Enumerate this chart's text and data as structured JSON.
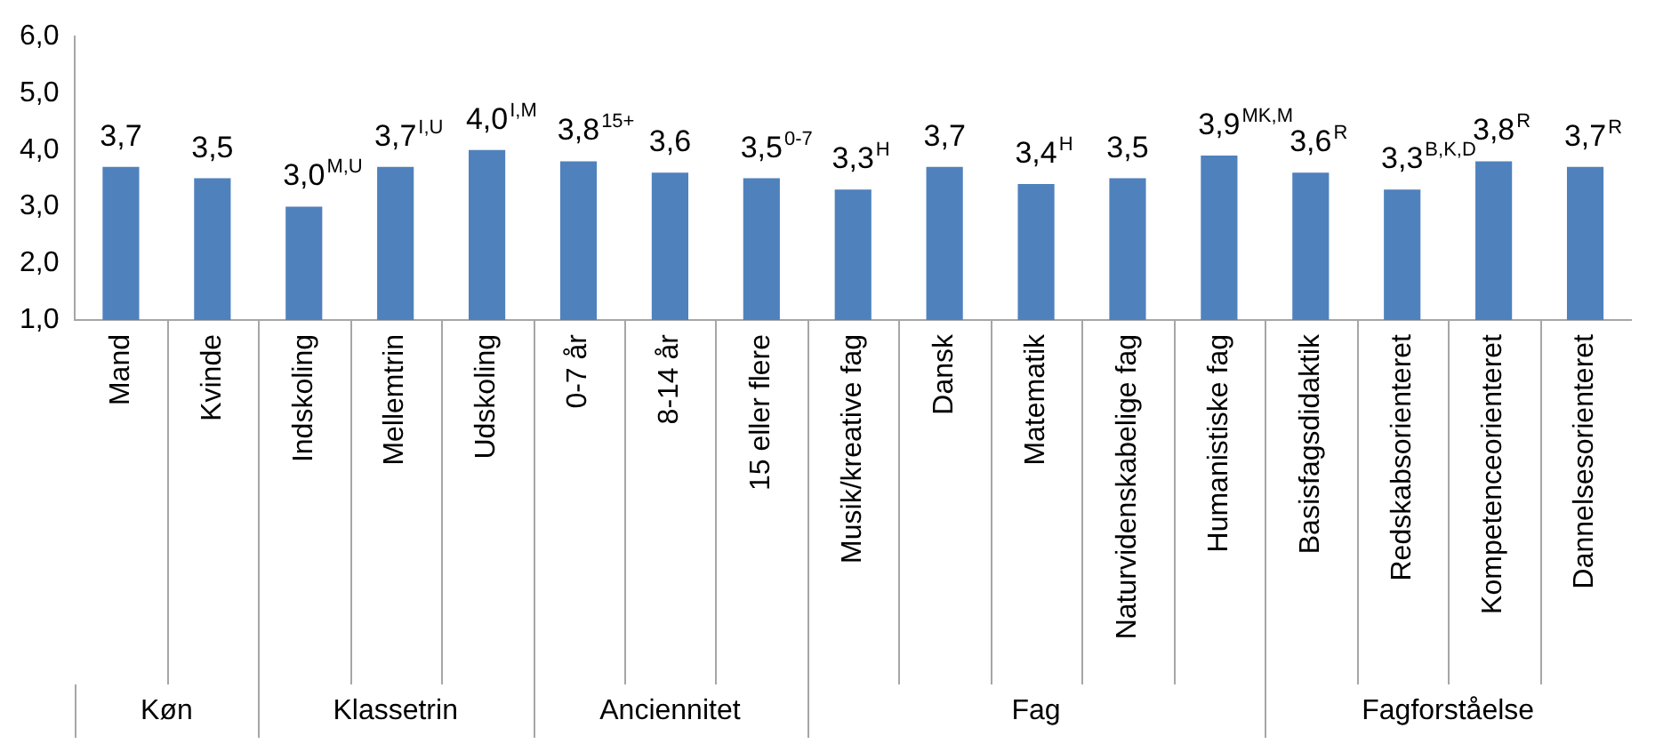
{
  "chart_data": {
    "type": "bar",
    "categories": [
      "Mand",
      "Kvinde",
      "Indskoling",
      "Mellemtrin",
      "Udskoling",
      "0-7 år",
      "8-14 år",
      "15 eller flere",
      "Musik/kreative fag",
      "Dansk",
      "Matematik",
      "Naturvidenskabelige fag",
      "Humanistiske fag",
      "Basisfagsdidaktik",
      "Redskabsorienteret",
      "Kompetenceorienteret",
      "Dannelsesorienteret"
    ],
    "values": [
      3.7,
      3.5,
      3.0,
      3.7,
      4.0,
      3.8,
      3.6,
      3.5,
      3.3,
      3.7,
      3.4,
      3.5,
      3.9,
      3.6,
      3.3,
      3.8,
      3.7
    ],
    "value_labels": [
      "3,7",
      "3,5",
      "3,0$^{M,U}$",
      "3,7$^{I,U}$",
      "4,0$^{I,M}$",
      "3,8$^{15+}$",
      "3,6",
      "3,5$^{0-7}$",
      "3,3$^{H}$",
      "3,7",
      "3,4$^{H}$",
      "3,5",
      "3,9$^{MK,M}$",
      "3,6$^{R}$",
      "3,3$^{B,K,D}$",
      "3,8$^{R}$",
      "3,7$^{R}$"
    ],
    "color": "#4f81bd",
    "ylim": [
      1,
      6
    ],
    "yticks": [
      {
        "value": 1,
        "label": "1,0"
      },
      {
        "value": 2,
        "label": "2,0"
      },
      {
        "value": 3,
        "label": "3,0"
      },
      {
        "value": 4,
        "label": "4,0"
      },
      {
        "value": 5,
        "label": "5,0"
      },
      {
        "value": 6,
        "label": "6,0"
      }
    ],
    "grid": false,
    "legend": false,
    "annotations": [
      "Køn",
      "Klassetrin",
      "Anciennitet",
      "Fag",
      "Fagforståelse"
    ]
  }
}
